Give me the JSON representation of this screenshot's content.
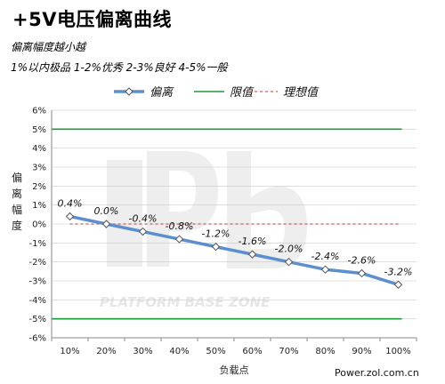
{
  "header": {
    "title": "+5V电压偏离曲线",
    "notes": [
      "偏离幅度越小越",
      "1%以内极品 1-2%优秀  2-3%良好 4-5%一般"
    ]
  },
  "source": "Power.zol.com.cn",
  "watermark": "PLATFORM BASE ZONE",
  "colors": {
    "deviation": "#5b8fcf",
    "limit": "#1e9a3c",
    "ideal": "#c0392b",
    "grid": "#c8c8c8",
    "axis": "#888888"
  },
  "chart_data": {
    "type": "line",
    "xlabel": "负载点",
    "ylabel": "偏离幅度",
    "categories": [
      "10%",
      "20%",
      "30%",
      "40%",
      "50%",
      "60%",
      "70%",
      "80%",
      "90%",
      "100%"
    ],
    "yticks": [
      "6%",
      "5%",
      "4%",
      "3%",
      "2%",
      "1%",
      "0%",
      "-1%",
      "-2%",
      "-3%",
      "-4%",
      "-5%",
      "-6%"
    ],
    "ylim": [
      -6,
      6
    ],
    "grid": "horizontal",
    "legend_position": "top",
    "series": [
      {
        "name": "偏离",
        "values": [
          0.4,
          0.0,
          -0.4,
          -0.8,
          -1.2,
          -1.6,
          -2.0,
          -2.4,
          -2.6,
          -3.2
        ],
        "labels": [
          "0.4%",
          "0.0%",
          "-0.4%",
          "-0.8%",
          "-1.2%",
          "-1.6%",
          "-2.0%",
          "-2.4%",
          "-2.6%",
          "-3.2%"
        ]
      },
      {
        "name": "限值",
        "upper": 5,
        "lower": -5
      },
      {
        "name": "理想值",
        "value": 0
      }
    ]
  }
}
